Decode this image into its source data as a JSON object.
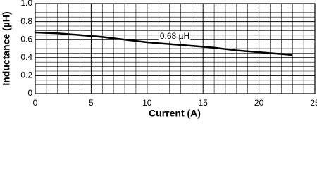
{
  "chart_data": {
    "type": "line",
    "xlabel": "Current (A)",
    "ylabel": "Inductance (µH)",
    "annotation": "0.68 µH",
    "x": [
      0,
      2,
      4,
      6,
      8,
      10,
      12,
      14,
      16,
      18,
      20,
      22,
      23
    ],
    "series": [
      {
        "color": "#000000",
        "values": [
          0.68,
          0.67,
          0.65,
          0.63,
          0.6,
          0.57,
          0.55,
          0.53,
          0.51,
          0.48,
          0.46,
          0.44,
          0.43
        ]
      }
    ],
    "xlim": [
      0,
      25
    ],
    "xticks": [
      0,
      5,
      10,
      15,
      20,
      25
    ],
    "ylim": [
      0,
      1
    ],
    "yticks": [
      0,
      0.2,
      0.4,
      0.6,
      0.8,
      {
        "value": 1,
        "label": "1.0"
      }
    ],
    "grid": true,
    "x_minor_grid": [
      1,
      2,
      3,
      4,
      6,
      7,
      8,
      9,
      11,
      12,
      13,
      14,
      16,
      17,
      18,
      19,
      21,
      22,
      23,
      24
    ],
    "y_minor_grid": [
      0.05,
      0.1,
      0.15,
      0.25,
      0.3,
      0.35,
      0.45,
      0.5,
      0.55,
      0.65,
      0.7,
      0.75,
      0.85,
      0.9,
      0.95
    ]
  }
}
